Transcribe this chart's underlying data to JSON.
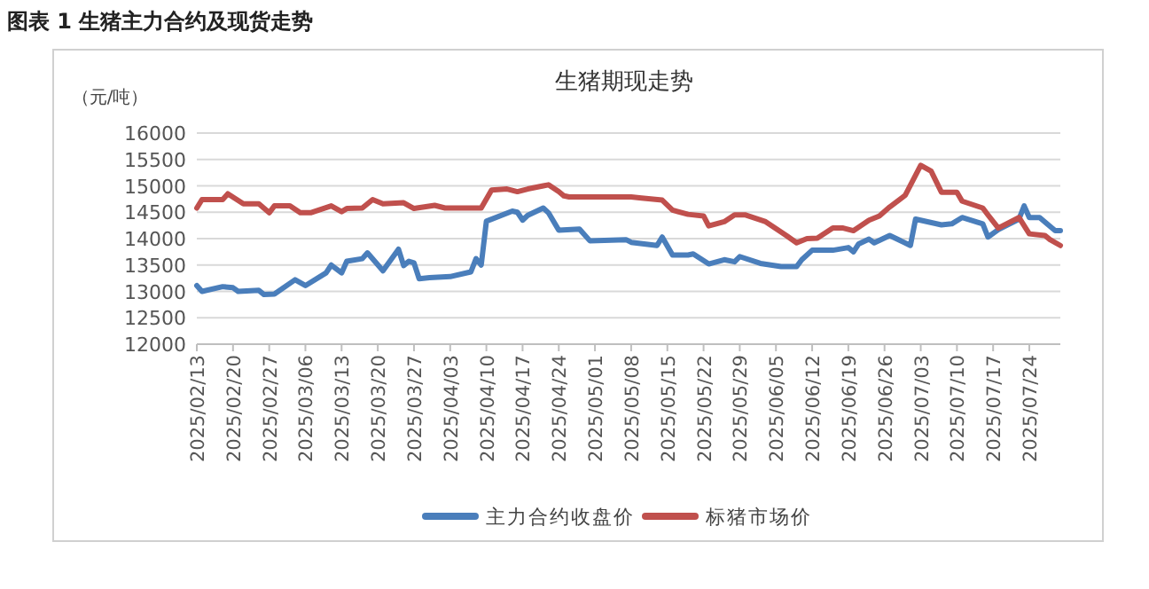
{
  "chart_data": {
    "type": "line",
    "title": "图表 1 生猪主力合约及现货走势",
    "subtitle": "生猪期现走势",
    "ylabel": "（元/吨）",
    "xlim": [
      "2025-02-13",
      "2025-07-30"
    ],
    "xticks": [
      {
        "value": "2025-02-13",
        "label": "2025/02/13"
      },
      {
        "value": "2025-02-20",
        "label": "2025/02/20"
      },
      {
        "value": "2025-02-27",
        "label": "2025/02/27"
      },
      {
        "value": "2025-03-06",
        "label": "2025/03/06"
      },
      {
        "value": "2025-03-13",
        "label": "2025/03/13"
      },
      {
        "value": "2025-03-20",
        "label": "2025/03/20"
      },
      {
        "value": "2025-03-27",
        "label": "2025/03/27"
      },
      {
        "value": "2025-04-03",
        "label": "2025/04/03"
      },
      {
        "value": "2025-04-10",
        "label": "2025/04/10"
      },
      {
        "value": "2025-04-17",
        "label": "2025/04/17"
      },
      {
        "value": "2025-04-24",
        "label": "2025/04/24"
      },
      {
        "value": "2025-05-01",
        "label": "2025/05/01"
      },
      {
        "value": "2025-05-08",
        "label": "2025/05/08"
      },
      {
        "value": "2025-05-15",
        "label": "2025/05/15"
      },
      {
        "value": "2025-05-22",
        "label": "2025/05/22"
      },
      {
        "value": "2025-05-29",
        "label": "2025/05/29"
      },
      {
        "value": "2025-06-05",
        "label": "2025/06/05"
      },
      {
        "value": "2025-06-12",
        "label": "2025/06/12"
      },
      {
        "value": "2025-06-19",
        "label": "2025/06/19"
      },
      {
        "value": "2025-06-26",
        "label": "2025/06/26"
      },
      {
        "value": "2025-07-03",
        "label": "2025/07/03"
      },
      {
        "value": "2025-07-10",
        "label": "2025/07/10"
      },
      {
        "value": "2025-07-17",
        "label": "2025/07/17"
      },
      {
        "value": "2025-07-24",
        "label": "2025/07/24"
      }
    ],
    "ylim": [
      12000,
      16000
    ],
    "yticks": [
      12000,
      12500,
      13000,
      13500,
      14000,
      14500,
      15000,
      15500,
      16000
    ],
    "grid": "y",
    "legend": "bottom",
    "line_style": "solid",
    "marker": "none",
    "series": [
      {
        "name": "主力合约收盘价",
        "color": "#4a7ebb",
        "x": [
          "2025-02-13",
          "2025-02-14",
          "2025-02-18",
          "2025-02-20",
          "2025-02-21",
          "2025-02-25",
          "2025-02-26",
          "2025-02-28",
          "2025-03-04",
          "2025-03-06",
          "2025-03-10",
          "2025-03-11",
          "2025-03-13",
          "2025-03-14",
          "2025-03-17",
          "2025-03-18",
          "2025-03-21",
          "2025-03-24",
          "2025-03-25",
          "2025-03-26",
          "2025-03-27",
          "2025-03-28",
          "2025-03-30",
          "2025-04-03",
          "2025-04-07",
          "2025-04-08",
          "2025-04-09",
          "2025-04-10",
          "2025-04-15",
          "2025-04-16",
          "2025-04-17",
          "2025-04-18",
          "2025-04-21",
          "2025-04-22",
          "2025-04-24",
          "2025-04-28",
          "2025-04-30",
          "2025-05-07",
          "2025-05-08",
          "2025-05-13",
          "2025-05-14",
          "2025-05-16",
          "2025-05-19",
          "2025-05-20",
          "2025-05-23",
          "2025-05-26",
          "2025-05-28",
          "2025-05-29",
          "2025-06-02",
          "2025-06-06",
          "2025-06-09",
          "2025-06-10",
          "2025-06-12",
          "2025-06-16",
          "2025-06-19",
          "2025-06-20",
          "2025-06-21",
          "2025-06-23",
          "2025-06-24",
          "2025-06-27",
          "2025-07-01",
          "2025-07-02",
          "2025-07-07",
          "2025-07-09",
          "2025-07-11",
          "2025-07-15",
          "2025-07-16",
          "2025-07-18",
          "2025-07-22",
          "2025-07-23",
          "2025-07-24",
          "2025-07-26",
          "2025-07-29",
          "2025-07-30"
        ],
        "values": [
          13110,
          13000,
          13090,
          13070,
          13000,
          13020,
          12940,
          12950,
          13220,
          13110,
          13350,
          13500,
          13350,
          13570,
          13620,
          13730,
          13390,
          13800,
          13490,
          13570,
          13540,
          13240,
          13260,
          13280,
          13370,
          13620,
          13500,
          14330,
          14520,
          14500,
          14350,
          14440,
          14580,
          14490,
          14160,
          14180,
          13960,
          13980,
          13930,
          13870,
          14030,
          13690,
          13690,
          13710,
          13520,
          13600,
          13560,
          13660,
          13530,
          13470,
          13470,
          13600,
          13780,
          13780,
          13830,
          13750,
          13900,
          13990,
          13920,
          14060,
          13870,
          14370,
          14260,
          14280,
          14400,
          14280,
          14030,
          14170,
          14370,
          14620,
          14400,
          14400,
          14150,
          14150
        ]
      },
      {
        "name": "标猪市场价",
        "color": "#c0504d",
        "x": [
          "2025-02-13",
          "2025-02-14",
          "2025-02-18",
          "2025-02-19",
          "2025-02-22",
          "2025-02-25",
          "2025-02-27",
          "2025-02-28",
          "2025-03-03",
          "2025-03-05",
          "2025-03-07",
          "2025-03-11",
          "2025-03-13",
          "2025-03-14",
          "2025-03-17",
          "2025-03-19",
          "2025-03-21",
          "2025-03-25",
          "2025-03-27",
          "2025-03-31",
          "2025-04-02",
          "2025-04-09",
          "2025-04-11",
          "2025-04-14",
          "2025-04-16",
          "2025-04-18",
          "2025-04-21",
          "2025-04-22",
          "2025-04-24",
          "2025-04-25",
          "2025-04-26",
          "2025-05-08",
          "2025-05-10",
          "2025-05-14",
          "2025-05-16",
          "2025-05-19",
          "2025-05-22",
          "2025-05-23",
          "2025-05-26",
          "2025-05-28",
          "2025-05-30",
          "2025-06-03",
          "2025-06-07",
          "2025-06-09",
          "2025-06-11",
          "2025-06-13",
          "2025-06-16",
          "2025-06-18",
          "2025-06-20",
          "2025-06-23",
          "2025-06-25",
          "2025-06-27",
          "2025-06-30",
          "2025-07-03",
          "2025-07-05",
          "2025-07-07",
          "2025-07-10",
          "2025-07-11",
          "2025-07-15",
          "2025-07-16",
          "2025-07-18",
          "2025-07-22",
          "2025-07-24",
          "2025-07-27",
          "2025-07-28",
          "2025-07-30"
        ],
        "values": [
          14580,
          14740,
          14740,
          14850,
          14660,
          14660,
          14490,
          14620,
          14620,
          14490,
          14490,
          14620,
          14510,
          14570,
          14580,
          14740,
          14660,
          14680,
          14570,
          14630,
          14580,
          14580,
          14920,
          14940,
          14890,
          14940,
          15000,
          15020,
          14890,
          14810,
          14790,
          14790,
          14770,
          14730,
          14540,
          14460,
          14430,
          14240,
          14320,
          14450,
          14450,
          14320,
          14060,
          13920,
          14000,
          14010,
          14200,
          14200,
          14150,
          14350,
          14430,
          14600,
          14820,
          15390,
          15280,
          14880,
          14880,
          14710,
          14580,
          14450,
          14200,
          14400,
          14090,
          14060,
          13980,
          13870
        ]
      }
    ]
  }
}
